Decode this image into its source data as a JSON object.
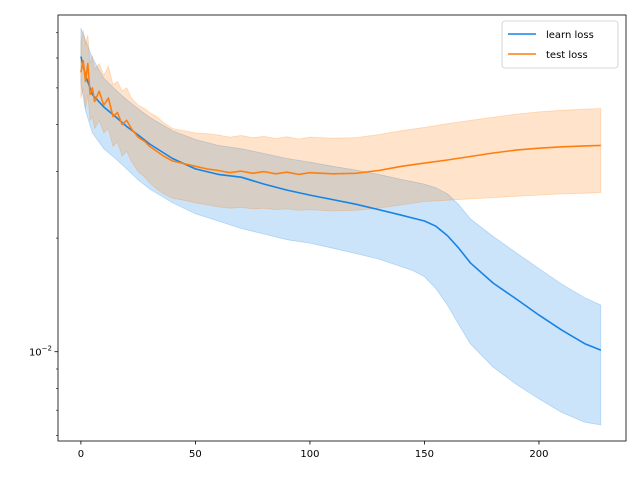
{
  "chart_data": {
    "type": "line",
    "title": "",
    "xlabel": "",
    "ylabel": "",
    "yscale": "log",
    "xlim": [
      -10,
      238
    ],
    "ylim": [
      0.0058,
      0.078
    ],
    "grid": false,
    "legend_position": "top-right",
    "x_ticks": [
      0,
      50,
      100,
      150,
      200
    ],
    "x_tick_labels": [
      "0",
      "50",
      "100",
      "150",
      "200"
    ],
    "y_major_ticks": [
      0.01
    ],
    "y_major_tick_labels": [
      {
        "base": "10",
        "exp": "−2"
      }
    ],
    "y_minor_ticks": [
      0.006,
      0.007,
      0.008,
      0.009,
      0.02,
      0.03,
      0.04,
      0.05,
      0.06,
      0.07
    ],
    "series": [
      {
        "name": "learn loss",
        "color": "#1683e6",
        "band_color": "#1683e6",
        "x": [
          0,
          2,
          5,
          10,
          15,
          20,
          25,
          30,
          40,
          50,
          60,
          70,
          80,
          90,
          100,
          110,
          120,
          130,
          140,
          145,
          150,
          155,
          160,
          165,
          170,
          180,
          190,
          200,
          210,
          220,
          227
        ],
        "y": [
          0.0605,
          0.054,
          0.048,
          0.0445,
          0.042,
          0.0395,
          0.0375,
          0.0355,
          0.0325,
          0.0305,
          0.0295,
          0.029,
          0.0278,
          0.0268,
          0.026,
          0.0253,
          0.0246,
          0.0238,
          0.023,
          0.0226,
          0.0222,
          0.0215,
          0.0203,
          0.0188,
          0.0172,
          0.0152,
          0.0138,
          0.0125,
          0.0114,
          0.0105,
          0.0101
        ],
        "lower": [
          0.0515,
          0.0435,
          0.038,
          0.0345,
          0.0325,
          0.0305,
          0.0285,
          0.027,
          0.0248,
          0.0232,
          0.0222,
          0.0212,
          0.0205,
          0.0198,
          0.0194,
          0.0188,
          0.0182,
          0.0176,
          0.0168,
          0.0164,
          0.0158,
          0.0147,
          0.0133,
          0.0118,
          0.0105,
          0.0091,
          0.0082,
          0.0075,
          0.0069,
          0.0065,
          0.0064
        ],
        "upper": [
          0.072,
          0.067,
          0.06,
          0.053,
          0.0495,
          0.0465,
          0.044,
          0.0418,
          0.0385,
          0.0365,
          0.0352,
          0.0345,
          0.0335,
          0.0325,
          0.0318,
          0.031,
          0.0303,
          0.0295,
          0.0286,
          0.0282,
          0.0278,
          0.0272,
          0.0262,
          0.0245,
          0.0225,
          0.0202,
          0.0183,
          0.0166,
          0.0151,
          0.0139,
          0.0133
        ]
      },
      {
        "name": "test loss",
        "color": "#ff7f0e",
        "band_color": "#ff7f0e",
        "x": [
          0,
          1,
          2,
          3,
          4,
          5,
          6,
          8,
          10,
          12,
          14,
          16,
          18,
          20,
          22,
          25,
          28,
          30,
          33,
          36,
          40,
          45,
          50,
          55,
          60,
          65,
          70,
          75,
          80,
          85,
          90,
          95,
          100,
          110,
          120,
          130,
          140,
          150,
          160,
          170,
          180,
          190,
          200,
          210,
          220,
          227
        ],
        "y": [
          0.055,
          0.059,
          0.052,
          0.058,
          0.048,
          0.05,
          0.046,
          0.049,
          0.045,
          0.047,
          0.042,
          0.043,
          0.04,
          0.041,
          0.039,
          0.037,
          0.036,
          0.035,
          0.034,
          0.033,
          0.032,
          0.0315,
          0.031,
          0.0305,
          0.0302,
          0.0298,
          0.0301,
          0.0297,
          0.03,
          0.0296,
          0.0299,
          0.0295,
          0.0298,
          0.0296,
          0.0297,
          0.0302,
          0.031,
          0.0316,
          0.0322,
          0.0329,
          0.0336,
          0.0342,
          0.0346,
          0.0349,
          0.0351,
          0.0352
        ],
        "lower": [
          0.047,
          0.05,
          0.044,
          0.048,
          0.041,
          0.042,
          0.039,
          0.041,
          0.038,
          0.039,
          0.035,
          0.036,
          0.033,
          0.034,
          0.032,
          0.03,
          0.029,
          0.028,
          0.027,
          0.0262,
          0.0255,
          0.0252,
          0.0248,
          0.0245,
          0.0242,
          0.024,
          0.0241,
          0.0239,
          0.024,
          0.0238,
          0.0239,
          0.0237,
          0.0238,
          0.0236,
          0.0237,
          0.024,
          0.0245,
          0.025,
          0.0252,
          0.0254,
          0.0256,
          0.0258,
          0.026,
          0.0262,
          0.0263,
          0.0264
        ],
        "upper": [
          0.066,
          0.071,
          0.065,
          0.069,
          0.058,
          0.061,
          0.056,
          0.058,
          0.054,
          0.057,
          0.051,
          0.052,
          0.049,
          0.05,
          0.047,
          0.045,
          0.044,
          0.043,
          0.042,
          0.0405,
          0.039,
          0.0385,
          0.038,
          0.0378,
          0.0375,
          0.037,
          0.0374,
          0.0369,
          0.0372,
          0.0367,
          0.0371,
          0.0366,
          0.037,
          0.0368,
          0.0369,
          0.0376,
          0.0385,
          0.0393,
          0.0402,
          0.041,
          0.0418,
          0.0426,
          0.0432,
          0.0436,
          0.0439,
          0.0441
        ]
      }
    ]
  }
}
